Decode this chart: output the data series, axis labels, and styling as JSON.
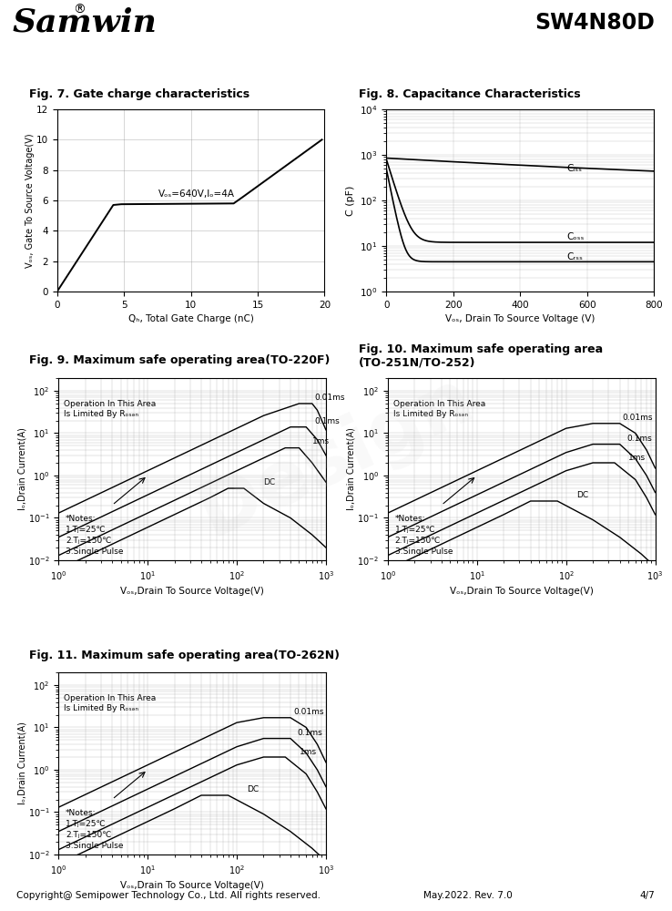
{
  "title_logo": "Samwin",
  "title_part": "SW4N80D",
  "fig7_title": "Fig. 7. Gate charge characteristics",
  "fig8_title": "Fig. 8. Capacitance Characteristics",
  "fig9_title": "Fig. 9. Maximum safe operating area(TO-220F)",
  "fig10_title": "Fig. 10. Maximum safe operating area\n(TO-251N/TO-252)",
  "fig11_title": "Fig. 11. Maximum safe operating area(TO-262N)",
  "footer": "Copyright@ Semipower Technology Co., Ltd. All rights reserved.",
  "footer_right": "May.2022. Rev. 7.0",
  "footer_page": "4/7",
  "fig7": {
    "xlabel": "Qₕ, Total Gate Charge (nC)",
    "ylabel": "Vₒₛ, Gate To Source Voltage(V)",
    "annotation": "Vₒₛ=640V,Iₒ=4A",
    "xlim": [
      0,
      20
    ],
    "ylim": [
      0,
      12
    ],
    "xticks": [
      0,
      5,
      10,
      15,
      20
    ],
    "yticks": [
      0,
      2,
      4,
      6,
      8,
      10,
      12
    ],
    "curve_x": [
      0,
      4.2,
      4.8,
      13.2,
      14.0,
      19.8
    ],
    "curve_y": [
      0.0,
      5.7,
      5.75,
      5.8,
      6.3,
      10.0
    ]
  },
  "fig8": {
    "xlabel": "Vₒₛ, Drain To Source Voltage (V)",
    "ylabel": "C (pF)",
    "xlim": [
      0,
      800
    ],
    "xticks": [
      0,
      200,
      400,
      600,
      800
    ],
    "ciss_label": "Cᵢₛₛ",
    "coss_label": "Cₒₛₛ",
    "crss_label": "Cᵣₛₛ"
  },
  "soa9_xlabel": "Vₒₛ,Drain To Source Voltage(V)",
  "soa9_ylabel": "Iₒ,Drain Current(A)",
  "soa10_xlabel": "Vₒₛ,Drain To Source Voltage(V)",
  "soa10_ylabel": "Iₒ,Drain Current(A)",
  "soa11_xlabel": "Vₒₛ,Drain To Source Voltage(V)",
  "soa11_ylabel": "Iₒ,Drain Current(A)",
  "soa_op_text": "Operation In This Area\nIs Limited By Rₒₛₔₙ",
  "soa_notes": "*Notes:\n1.Tⱼ=25℃\n2.Tⱼ=150℃\n3.Single Pulse",
  "background_color": "#ffffff"
}
